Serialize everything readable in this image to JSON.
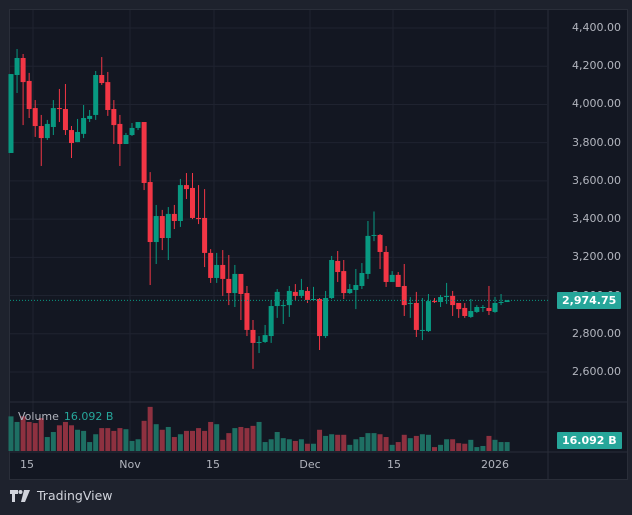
{
  "branding": {
    "name": "TradingView",
    "logo_icon": "tradingview-logo-icon"
  },
  "price_axis": {
    "labels": [
      "4,400.00",
      "4,200.00",
      "4,000.00",
      "3,800.00",
      "3,600.00",
      "3,400.00",
      "3,200.00",
      "3,000.00",
      "2,800.00",
      "2,600.00"
    ],
    "last_price": "2,974.75"
  },
  "time_axis": {
    "labels": [
      "15",
      "Nov",
      "15",
      "Dec",
      "15",
      "2026"
    ]
  },
  "volume": {
    "label": "Volume",
    "value": "16.092 B",
    "badge": "16.092 B"
  },
  "colors": {
    "up": "#089981",
    "down": "#f23645",
    "vol_up": "#1e6f63",
    "vol_down": "#8e3140",
    "badge": "#26a69a",
    "background": "#131722"
  },
  "chart_data": {
    "type": "candlestick",
    "title": "",
    "xlabel": "",
    "ylabel": "",
    "ylim": [
      2550,
      4450
    ],
    "grid": true,
    "x_ticks": [
      "15",
      "Nov",
      "15",
      "Dec",
      "15",
      "2026"
    ],
    "y_ticks": [
      4400,
      4200,
      4000,
      3800,
      3600,
      3400,
      3200,
      3000,
      2800,
      2600
    ],
    "last_price": 2974.75,
    "volume_last_B": 16.092,
    "ohlc": [
      [
        3746,
        4159,
        3746,
        4159
      ],
      [
        4154,
        4290,
        4060,
        4243
      ],
      [
        4243,
        4264,
        3892,
        4117
      ],
      [
        4123,
        4165,
        3929,
        3976
      ],
      [
        3981,
        4023,
        3830,
        3887
      ],
      [
        3887,
        3945,
        3678,
        3824
      ],
      [
        3824,
        3919,
        3814,
        3898
      ],
      [
        3882,
        4023,
        3840,
        3981
      ],
      [
        3981,
        4081,
        3908,
        3976
      ],
      [
        3976,
        4107,
        3840,
        3866
      ],
      [
        3866,
        3887,
        3720,
        3798
      ],
      [
        3803,
        3924,
        3803,
        3856
      ],
      [
        3846,
        3997,
        3824,
        3929
      ],
      [
        3924,
        3971,
        3908,
        3940
      ],
      [
        3945,
        4175,
        3919,
        4154
      ],
      [
        4154,
        4248,
        4102,
        4112
      ],
      [
        4117,
        4170,
        3940,
        3971
      ],
      [
        3976,
        4023,
        3793,
        3892
      ],
      [
        3898,
        3945,
        3678,
        3793
      ],
      [
        3793,
        3851,
        3793,
        3840
      ],
      [
        3840,
        3903,
        3835,
        3877
      ],
      [
        3877,
        3908,
        3866,
        3908
      ],
      [
        3908,
        3908,
        3552,
        3589
      ],
      [
        3594,
        3646,
        3055,
        3280
      ],
      [
        3280,
        3474,
        3165,
        3416
      ],
      [
        3416,
        3448,
        3238,
        3301
      ],
      [
        3301,
        3463,
        3186,
        3427
      ],
      [
        3427,
        3474,
        3348,
        3390
      ],
      [
        3390,
        3610,
        3359,
        3578
      ],
      [
        3578,
        3641,
        3505,
        3557
      ],
      [
        3563,
        3641,
        3400,
        3406
      ],
      [
        3406,
        3578,
        3374,
        3400
      ],
      [
        3406,
        3557,
        3149,
        3223
      ],
      [
        3223,
        3243,
        3066,
        3092
      ],
      [
        3092,
        3223,
        3066,
        3160
      ],
      [
        3160,
        3238,
        2998,
        3087
      ],
      [
        3087,
        3212,
        2950,
        3013
      ],
      [
        3013,
        3160,
        2940,
        3113
      ],
      [
        3113,
        3113,
        2872,
        3008
      ],
      [
        3013,
        3050,
        2788,
        2820
      ],
      [
        2820,
        2872,
        2616,
        2752
      ],
      [
        2757,
        2788,
        2699,
        2757
      ],
      [
        2757,
        2846,
        2752,
        2793
      ],
      [
        2788,
        2977,
        2752,
        2945
      ],
      [
        2945,
        3034,
        2883,
        3019
      ],
      [
        2945,
        2971,
        2851,
        2950
      ],
      [
        2950,
        3050,
        2888,
        3024
      ],
      [
        3019,
        3060,
        2977,
        2998
      ],
      [
        2998,
        3087,
        2987,
        3029
      ],
      [
        3024,
        3045,
        2961,
        2977
      ],
      [
        2977,
        3045,
        2971,
        2982
      ],
      [
        2982,
        2987,
        2715,
        2788
      ],
      [
        2788,
        3024,
        2778,
        2987
      ],
      [
        2987,
        3207,
        2982,
        3186
      ],
      [
        3181,
        3233,
        3071,
        3123
      ],
      [
        3128,
        3186,
        2982,
        3013
      ],
      [
        3013,
        3060,
        3008,
        3034
      ],
      [
        3029,
        3139,
        2929,
        3055
      ],
      [
        3050,
        3170,
        3034,
        3118
      ],
      [
        3113,
        3390,
        3087,
        3312
      ],
      [
        3312,
        3440,
        3285,
        3317
      ],
      [
        3317,
        3322,
        3139,
        3228
      ],
      [
        3228,
        3259,
        3045,
        3071
      ],
      [
        3071,
        3128,
        3071,
        3108
      ],
      [
        3108,
        3123,
        3045,
        3045
      ],
      [
        3050,
        3165,
        2893,
        2950
      ],
      [
        2961,
        2992,
        2883,
        2961
      ],
      [
        2961,
        3019,
        2783,
        2820
      ],
      [
        2820,
        2987,
        2767,
        2820
      ],
      [
        2814,
        3008,
        2809,
        2971
      ],
      [
        2971,
        2987,
        2961,
        2966
      ],
      [
        2966,
        3003,
        2940,
        2992
      ],
      [
        2992,
        3066,
        2956,
        2998
      ],
      [
        2998,
        3024,
        2893,
        2950
      ],
      [
        2961,
        2961,
        2883,
        2929
      ],
      [
        2935,
        2961,
        2883,
        2893
      ],
      [
        2888,
        2982,
        2883,
        2919
      ],
      [
        2914,
        2950,
        2909,
        2940
      ],
      [
        2940,
        2950,
        2914,
        2940
      ],
      [
        2935,
        3050,
        2898,
        2919
      ],
      [
        2914,
        2992,
        2909,
        2961
      ],
      [
        2961,
        3008,
        2950,
        2966
      ],
      [
        2966,
        2977,
        2966,
        2975
      ]
    ],
    "volume_B": [
      62,
      52,
      62,
      52,
      50,
      59,
      25,
      34,
      46,
      52,
      46,
      38,
      36,
      16,
      30,
      41,
      41,
      36,
      41,
      39,
      18,
      21,
      54,
      79,
      48,
      38,
      43,
      25,
      30,
      36,
      36,
      41,
      36,
      52,
      48,
      20,
      32,
      41,
      43,
      41,
      45,
      52,
      16,
      21,
      34,
      23,
      21,
      18,
      21,
      13,
      13,
      38,
      27,
      30,
      29,
      29,
      11,
      21,
      25,
      32,
      32,
      30,
      25,
      11,
      16,
      29,
      23,
      27,
      30,
      29,
      7,
      11,
      21,
      21,
      14,
      13,
      20,
      7,
      9,
      27,
      20,
      16,
      16
    ]
  }
}
